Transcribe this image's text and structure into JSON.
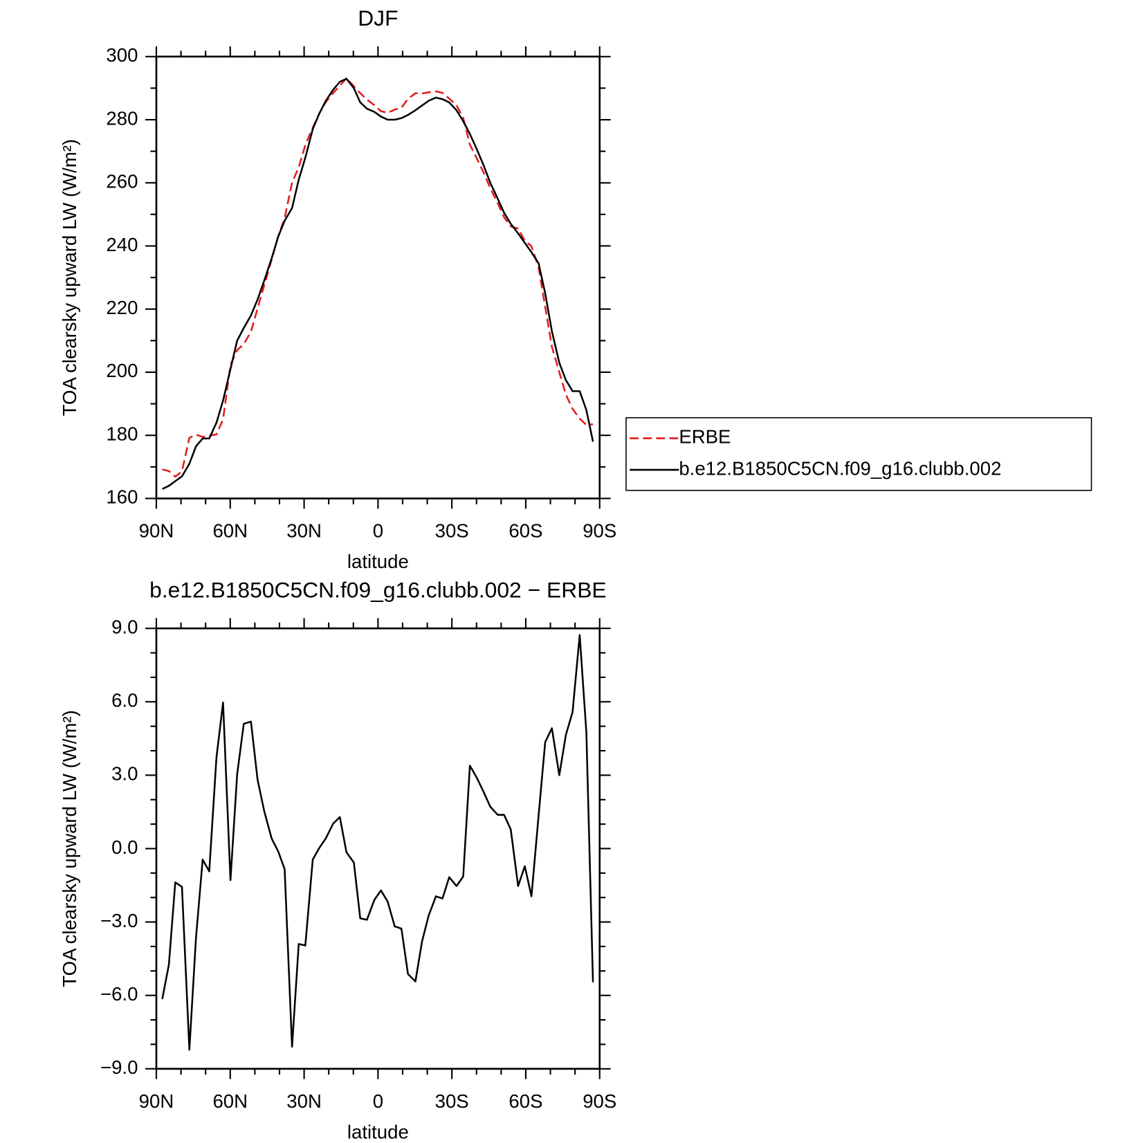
{
  "chart_data": [
    {
      "type": "line",
      "title": "DJF",
      "x_label": "latitude",
      "y_label": "TOA clearsky upward LW (W/m²)",
      "x": [
        87.6,
        84.9,
        82.3,
        79.6,
        76.6,
        73.9,
        71.2,
        68.5,
        65.6,
        62.9,
        59.9,
        57.2,
        54.5,
        51.6,
        48.9,
        46.2,
        43.2,
        40.5,
        37.9,
        34.9,
        32.2,
        29.5,
        26.5,
        23.8,
        21.2,
        18.2,
        15.5,
        12.8,
        9.8,
        7.2,
        4.5,
        1.5,
        -1.2,
        -3.9,
        -6.8,
        -9.5,
        -12.2,
        -15.2,
        -17.9,
        -20.6,
        -23.5,
        -26.2,
        -28.9,
        -31.9,
        -34.6,
        -37.3,
        -40.2,
        -42.9,
        -45.6,
        -48.6,
        -51.2,
        -53.9,
        -56.9,
        -59.6,
        -62.3,
        -65.2,
        -67.9,
        -70.6,
        -73.6,
        -76.3,
        -79.0,
        -81.9,
        -84.6,
        -87.3
      ],
      "xlim": [
        90,
        -90
      ],
      "xticks": [
        {
          "value": 90,
          "label": "90N"
        },
        {
          "value": 60,
          "label": "60N"
        },
        {
          "value": 30,
          "label": "30N"
        },
        0,
        {
          "value": -30,
          "label": "30S"
        },
        {
          "value": -60,
          "label": "60S"
        },
        {
          "value": -90,
          "label": "90S"
        }
      ],
      "minor_xticks": [
        80,
        70,
        50,
        40,
        20,
        10,
        -10,
        -20,
        -40,
        -50,
        -70,
        -80
      ],
      "ylim": [
        160,
        300
      ],
      "yticks": [
        160,
        180,
        200,
        220,
        240,
        260,
        280,
        300
      ],
      "minor_yticks": [
        170,
        190,
        210,
        230,
        250,
        270,
        290
      ],
      "series": [
        {
          "name": "ERBE",
          "color": "#e41a1c",
          "line_style": "dashed",
          "values": [
            169.2,
            168.7,
            166.9,
            168.6,
            179.2,
            180.2,
            179.5,
            179.9,
            180.3,
            185.0,
            202.3,
            207.0,
            208.9,
            212.8,
            220.2,
            227.5,
            235.6,
            243.1,
            248.8,
            260.1,
            264.9,
            272.0,
            277.5,
            282.0,
            285.6,
            288.5,
            290.7,
            293.2,
            290.6,
            288.4,
            286.4,
            284.6,
            282.7,
            282.2,
            283.2,
            283.8,
            286.6,
            288.4,
            288.3,
            288.7,
            289.0,
            288.5,
            286.7,
            284.5,
            280.6,
            272.1,
            267.6,
            263.2,
            258.3,
            253.6,
            249.1,
            246.2,
            245.5,
            241.7,
            239.9,
            233.2,
            220.7,
            208.1,
            200.0,
            192.9,
            188.4,
            185.3,
            183.3,
            183.5
          ]
        },
        {
          "name": "b.e12.B1850C5CN.f09_g16.clubb.002",
          "color": "#000000",
          "line_style": "solid",
          "values": [
            163,
            164,
            165.5,
            167,
            171,
            176.5,
            179,
            179,
            184,
            191,
            201,
            210,
            214,
            218,
            223,
            229,
            236,
            243,
            248,
            252,
            261,
            268,
            277,
            282,
            286,
            289.5,
            292,
            293,
            290,
            285.5,
            283.5,
            282.5,
            281,
            280,
            280,
            280.5,
            281.5,
            283,
            284.5,
            286,
            287,
            286.5,
            285.5,
            283,
            279.5,
            275.5,
            270.5,
            265.5,
            260,
            255,
            250.5,
            247,
            244,
            241,
            238,
            234.5,
            225,
            213,
            203,
            197.5,
            194,
            194,
            188,
            178
          ]
        }
      ],
      "legend": "right"
    },
    {
      "type": "line",
      "title": "b.e12.B1850C5CN.f09_g16.clubb.002 − ERBE",
      "x_label": "latitude",
      "y_label": "TOA clearsky upward LW (W/m²)",
      "x": [
        87.6,
        84.9,
        82.3,
        79.6,
        76.6,
        73.9,
        71.2,
        68.5,
        65.6,
        62.9,
        59.9,
        57.2,
        54.5,
        51.6,
        48.9,
        46.2,
        43.2,
        40.5,
        37.9,
        34.9,
        32.2,
        29.5,
        26.5,
        23.8,
        21.2,
        18.2,
        15.5,
        12.8,
        9.8,
        7.2,
        4.5,
        1.5,
        -1.2,
        -3.9,
        -6.8,
        -9.5,
        -12.2,
        -15.2,
        -17.9,
        -20.6,
        -23.5,
        -26.2,
        -28.9,
        -31.9,
        -34.6,
        -37.3,
        -40.2,
        -42.9,
        -45.6,
        -48.6,
        -51.2,
        -53.9,
        -56.9,
        -59.6,
        -62.3,
        -65.2,
        -67.9,
        -70.6,
        -73.6,
        -76.3,
        -79.0,
        -81.9,
        -84.6,
        -87.3
      ],
      "values": [
        -6.15,
        -4.74,
        -1.38,
        -1.56,
        -8.22,
        -3.66,
        -0.45,
        -0.93,
        3.72,
        5.97,
        -1.29,
        3.03,
        5.1,
        5.19,
        2.82,
        1.53,
        0.42,
        -0.12,
        -0.84,
        -8.1,
        -3.9,
        -3.96,
        -0.45,
        0.03,
        0.42,
        1.02,
        1.29,
        -0.15,
        -0.57,
        -2.85,
        -2.91,
        -2.1,
        -1.71,
        -2.16,
        -3.18,
        -3.27,
        -5.13,
        -5.43,
        -3.78,
        -2.73,
        -1.95,
        -2.04,
        -1.17,
        -1.53,
        -1.14,
        3.39,
        2.88,
        2.31,
        1.71,
        1.38,
        1.38,
        0.78,
        -1.53,
        -0.72,
        -1.95,
        1.35,
        4.35,
        4.92,
        3.0,
        4.65,
        5.58,
        8.73,
        4.74,
        -5.46
      ],
      "color": "#000000",
      "xlim": [
        90,
        -90
      ],
      "xticks": [
        {
          "value": 90,
          "label": "90N"
        },
        {
          "value": 60,
          "label": "60N"
        },
        {
          "value": 30,
          "label": "30N"
        },
        0,
        {
          "value": -30,
          "label": "30S"
        },
        {
          "value": -60,
          "label": "60S"
        },
        {
          "value": -90,
          "label": "90S"
        }
      ],
      "minor_xticks": [
        80,
        70,
        50,
        40,
        20,
        10,
        -10,
        -20,
        -40,
        -50,
        -70,
        -80
      ],
      "ylim": [
        -9,
        9
      ],
      "yticks": [
        {
          "value": -9,
          "label": "−9.0"
        },
        {
          "value": -6,
          "label": "−6.0"
        },
        {
          "value": -3,
          "label": "−3.0"
        },
        {
          "value": 0,
          "label": "0.0"
        },
        {
          "value": 3,
          "label": "3.0"
        },
        {
          "value": 6,
          "label": "6.0"
        },
        {
          "value": 9,
          "label": "9.0"
        }
      ],
      "minor_yticks": [
        -8,
        -7,
        -5,
        -4,
        -2,
        -1,
        1,
        2,
        4,
        5,
        7,
        8
      ]
    }
  ]
}
